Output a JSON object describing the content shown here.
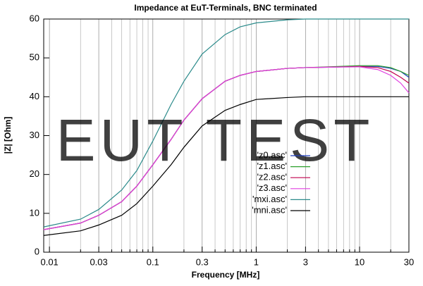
{
  "chart_data": {
    "type": "line",
    "title": "Impedance at EuT-Terminals, BNC terminated",
    "xlabel": "Frequency [MHz]",
    "ylabel": "|Z| [Ohm]",
    "watermark": "EUT TEST",
    "xscale": "log",
    "xlim": [
      0.0088,
      30
    ],
    "ylim": [
      0,
      60
    ],
    "xticks": [
      0.01,
      0.03,
      0.1,
      0.3,
      1,
      3,
      10,
      30
    ],
    "yticks": [
      0,
      10,
      20,
      30,
      40,
      50,
      60
    ],
    "xminorticks": [
      0.02,
      0.04,
      0.05,
      0.06,
      0.07,
      0.08,
      0.09,
      0.2,
      0.4,
      0.5,
      0.6,
      0.7,
      0.8,
      0.9,
      2,
      4,
      5,
      6,
      7,
      8,
      9,
      20
    ],
    "grid": "x",
    "legend": "right",
    "x": [
      0.0088,
      0.02,
      0.03,
      0.05,
      0.07,
      0.1,
      0.15,
      0.2,
      0.3,
      0.5,
      0.7,
      1,
      2,
      3,
      5,
      10,
      15,
      20,
      25,
      30
    ],
    "series": [
      {
        "name": "'z0.asc'",
        "color": "#1f3fbf",
        "values": [
          5.8,
          7.5,
          9.5,
          13,
          17,
          22.5,
          29,
          34,
          39.5,
          44,
          45.5,
          46.5,
          47.3,
          47.5,
          47.6,
          47.8,
          47.8,
          47.3,
          46.5,
          45
        ]
      },
      {
        "name": "'z1.asc'",
        "color": "#2ca02c",
        "values": [
          5.8,
          7.5,
          9.5,
          13,
          17,
          22.5,
          29,
          34,
          39.5,
          44,
          45.5,
          46.5,
          47.3,
          47.5,
          47.7,
          48,
          48,
          47.5,
          46.5,
          45.5
        ]
      },
      {
        "name": "'z2.asc'",
        "color": "#c0004d",
        "values": [
          5.8,
          7.5,
          9.5,
          13,
          17,
          22.5,
          29,
          34,
          39.5,
          44,
          45.5,
          46.5,
          47.3,
          47.5,
          47.6,
          47.8,
          47.5,
          46.5,
          45,
          43.5
        ]
      },
      {
        "name": "'z3.asc'",
        "color": "#e040e0",
        "values": [
          5.8,
          7.5,
          9.5,
          13,
          17,
          22.5,
          29,
          34,
          39.5,
          44,
          45.5,
          46.5,
          47.3,
          47.5,
          47.6,
          47.7,
          47,
          45.5,
          43.5,
          41
        ]
      },
      {
        "name": "'mxi.asc'",
        "color": "#2a8a8a",
        "values": [
          6.5,
          8.5,
          11,
          16,
          21,
          28.6,
          38,
          44,
          51,
          56,
          58,
          59,
          59.8,
          60,
          60,
          60,
          60,
          60,
          60,
          60
        ]
      },
      {
        "name": "'mni.asc'",
        "color": "#000000",
        "values": [
          4.3,
          5.5,
          7,
          9.5,
          12.5,
          17,
          22.5,
          27,
          32.5,
          36.5,
          38,
          39.3,
          39.8,
          40,
          40,
          40,
          40,
          40,
          40,
          40
        ]
      }
    ]
  }
}
